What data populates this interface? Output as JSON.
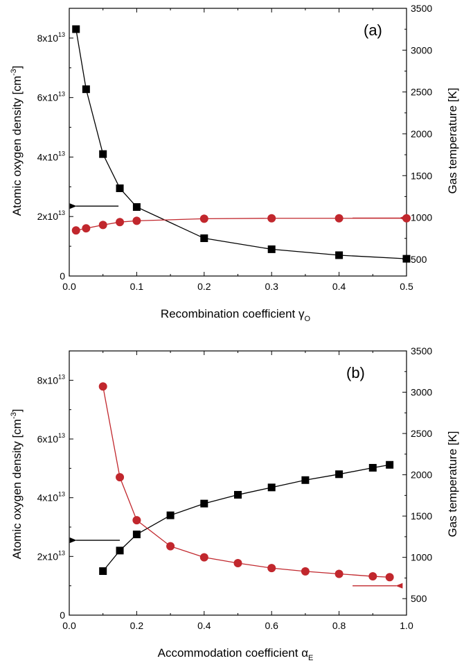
{
  "chart_data": [
    {
      "type": "line",
      "panel_label": "(a)",
      "xlabel": "Recombination coefficient γ",
      "xlabel_sub": "O",
      "ylabel_left": "Atomic oxygen density [cm",
      "ylabel_left_sup": "-3",
      "ylabel_left_end": "]",
      "ylabel_right": "Gas temperature [K]",
      "xlim": [
        0,
        0.5
      ],
      "ylim_left": [
        0,
        90000000000000.0
      ],
      "ylim_right": [
        300,
        3500
      ],
      "x_ticks": [
        0,
        0.1,
        0.2,
        0.3,
        0.4,
        0.5
      ],
      "x_tick_labels": [
        "0.0",
        "0.1",
        "0.2",
        "0.3",
        "0.4",
        "0.5"
      ],
      "y_left_ticks": [
        0,
        20000000000000.0,
        40000000000000.0,
        60000000000000.0,
        80000000000000.0
      ],
      "y_left_tick_labels": [
        {
          "base": "0",
          "sup": ""
        },
        {
          "base": "2x10",
          "sup": "13"
        },
        {
          "base": "4x10",
          "sup": "13"
        },
        {
          "base": "6x10",
          "sup": "13"
        },
        {
          "base": "8x10",
          "sup": "13"
        }
      ],
      "y_right_ticks": [
        500,
        1000,
        1500,
        2000,
        2500,
        3000,
        3500
      ],
      "y_right_tick_labels": [
        "500",
        "1000",
        "1500",
        "2000",
        "2500",
        "3000",
        "3500"
      ],
      "series": [
        {
          "axis": "left",
          "marker": "square",
          "color": "#000000",
          "x": [
            0.01,
            0.025,
            0.05,
            0.075,
            0.1,
            0.2,
            0.3,
            0.4,
            0.5
          ],
          "y": [
            83000000000000.0,
            62800000000000.0,
            41000000000000.0,
            29500000000000.0,
            23200000000000.0,
            12700000000000.0,
            9000000000000.0,
            7000000000000.0,
            5800000000000.0
          ]
        },
        {
          "axis": "right",
          "marker": "circle",
          "color": "#c1272d",
          "x": [
            0.01,
            0.025,
            0.05,
            0.075,
            0.1,
            0.2,
            0.3,
            0.4,
            0.5
          ],
          "y": [
            845,
            870,
            910,
            945,
            960,
            985,
            990,
            990,
            990
          ]
        }
      ],
      "arrows": [
        {
          "color": "#000000",
          "direction": "left",
          "x_from": 0.073,
          "x_to": 0.01,
          "y": 23500000000000.0,
          "axis": "left"
        },
        {
          "color": "#c1272d",
          "direction": "right",
          "x_from": 0.42,
          "x_to": 0.49,
          "y": 19500000000000.0,
          "axis": "left"
        }
      ]
    },
    {
      "type": "line",
      "panel_label": "(b)",
      "xlabel": "Accommodation coefficient α",
      "xlabel_sub": "E",
      "ylabel_left": "Atomic oxygen density [cm",
      "ylabel_left_sup": "-3",
      "ylabel_left_end": "]",
      "ylabel_right": "Gas temperature [K]",
      "xlim": [
        0,
        1.0
      ],
      "ylim_left": [
        0,
        90000000000000.0
      ],
      "ylim_right": [
        300,
        3500
      ],
      "x_ticks": [
        0,
        0.2,
        0.4,
        0.6,
        0.8,
        1.0
      ],
      "x_tick_labels": [
        "0.0",
        "0.2",
        "0.4",
        "0.6",
        "0.8",
        "1.0"
      ],
      "y_left_ticks": [
        0,
        20000000000000.0,
        40000000000000.0,
        60000000000000.0,
        80000000000000.0
      ],
      "y_left_tick_labels": [
        {
          "base": "0",
          "sup": ""
        },
        {
          "base": "2x10",
          "sup": "13"
        },
        {
          "base": "4x10",
          "sup": "13"
        },
        {
          "base": "6x10",
          "sup": "13"
        },
        {
          "base": "8x10",
          "sup": "13"
        }
      ],
      "y_right_ticks": [
        500,
        1000,
        1500,
        2000,
        2500,
        3000,
        3500
      ],
      "y_right_tick_labels": [
        "500",
        "1000",
        "1500",
        "2000",
        "2500",
        "3000",
        "3500"
      ],
      "series": [
        {
          "axis": "left",
          "marker": "square",
          "color": "#000000",
          "x": [
            0.1,
            0.15,
            0.2,
            0.3,
            0.4,
            0.5,
            0.6,
            0.7,
            0.8,
            0.9,
            0.95
          ],
          "y": [
            15000000000000.0,
            22000000000000.0,
            27500000000000.0,
            34000000000000.0,
            38000000000000.0,
            41000000000000.0,
            43500000000000.0,
            46000000000000.0,
            48000000000000.0,
            50200000000000.0,
            51200000000000.0
          ]
        },
        {
          "axis": "right",
          "marker": "circle",
          "color": "#c1272d",
          "x": [
            0.1,
            0.15,
            0.2,
            0.3,
            0.4,
            0.5,
            0.6,
            0.7,
            0.8,
            0.9,
            0.95
          ],
          "y": [
            3070,
            1970,
            1450,
            1135,
            1000,
            930,
            870,
            830,
            800,
            770,
            760
          ]
        }
      ],
      "arrows": [
        {
          "color": "#000000",
          "direction": "left",
          "x_from": 0.15,
          "x_to": 0.02,
          "y": 25500000000000.0,
          "axis": "left"
        },
        {
          "color": "#c1272d",
          "direction": "right",
          "x_from": 0.84,
          "x_to": 0.97,
          "y": 10000000000000.0,
          "axis": "left"
        }
      ]
    }
  ]
}
